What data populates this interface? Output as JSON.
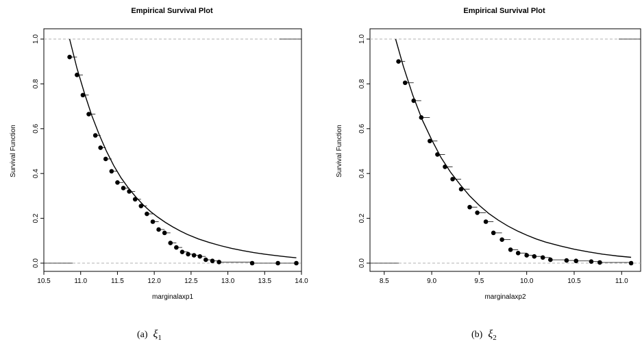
{
  "chart_data": [
    {
      "type": "scatter",
      "title": "Empirical Survival Plot",
      "xlabel": "marginalaxp1",
      "ylabel": "Survival Function",
      "xlim": [
        10.5,
        14.0
      ],
      "ylim": [
        0.0,
        1.0
      ],
      "xticks": [
        "10.5",
        "11.0",
        "11.5",
        "12.0",
        "12.5",
        "13.0",
        "13.5",
        "14.0"
      ],
      "yticks": [
        "0.0",
        "0.2",
        "0.4",
        "0.6",
        "0.8",
        "1.0"
      ],
      "caption": {
        "prefix": "(a)",
        "symbol": "ξ",
        "subscript": "1"
      },
      "points": {
        "x": [
          10.85,
          10.95,
          11.03,
          11.11,
          11.2,
          11.27,
          11.34,
          11.42,
          11.5,
          11.58,
          11.66,
          11.74,
          11.82,
          11.9,
          11.98,
          12.06,
          12.14,
          12.22,
          12.3,
          12.38,
          12.46,
          12.54,
          12.62,
          12.7,
          12.79,
          12.88,
          13.33,
          13.68,
          13.93
        ],
        "y": [
          0.92,
          0.84,
          0.75,
          0.665,
          0.57,
          0.515,
          0.465,
          0.41,
          0.36,
          0.335,
          0.32,
          0.285,
          0.255,
          0.22,
          0.185,
          0.15,
          0.135,
          0.09,
          0.07,
          0.05,
          0.04,
          0.035,
          0.03,
          0.015,
          0.01,
          0.005,
          0.0,
          0.0,
          0.0
        ]
      },
      "curve": {
        "x": [
          10.85,
          10.95,
          11.05,
          11.15,
          11.25,
          11.35,
          11.45,
          11.55,
          11.65,
          11.75,
          11.85,
          11.95,
          12.05,
          12.15,
          12.25,
          12.35,
          12.45,
          12.6,
          12.75,
          12.9,
          13.05,
          13.2,
          13.35,
          13.5,
          13.65,
          13.8,
          13.93
        ],
        "y": [
          1.0,
          0.87,
          0.76,
          0.66,
          0.575,
          0.5,
          0.435,
          0.38,
          0.335,
          0.295,
          0.26,
          0.23,
          0.205,
          0.182,
          0.162,
          0.144,
          0.128,
          0.108,
          0.092,
          0.078,
          0.066,
          0.056,
          0.047,
          0.04,
          0.034,
          0.028,
          0.024
        ]
      }
    },
    {
      "type": "scatter",
      "title": "Empirical Survival Plot",
      "xlabel": "marginalaxp2",
      "ylabel": "Survival Function",
      "xlim": [
        8.35,
        11.2
      ],
      "ylim": [
        0.0,
        1.0
      ],
      "xticks": [
        "8.5",
        "9.0",
        "9.5",
        "10.0",
        "10.5",
        "11.0"
      ],
      "yticks": [
        "0.0",
        "0.2",
        "0.4",
        "0.6",
        "0.8",
        "1.0"
      ],
      "caption": {
        "prefix": "(b)",
        "symbol": "ξ",
        "subscript": "2"
      },
      "points": {
        "x": [
          8.65,
          8.72,
          8.81,
          8.89,
          8.98,
          9.06,
          9.14,
          9.22,
          9.31,
          9.4,
          9.48,
          9.57,
          9.65,
          9.74,
          9.83,
          9.91,
          10.0,
          10.08,
          10.17,
          10.25,
          10.42,
          10.52,
          10.68,
          10.77,
          11.1
        ],
        "y": [
          0.9,
          0.805,
          0.725,
          0.65,
          0.545,
          0.485,
          0.43,
          0.375,
          0.33,
          0.25,
          0.225,
          0.185,
          0.135,
          0.105,
          0.06,
          0.045,
          0.035,
          0.03,
          0.025,
          0.015,
          0.012,
          0.01,
          0.007,
          0.003,
          0.0
        ]
      },
      "curve": {
        "x": [
          8.62,
          8.7,
          8.8,
          8.9,
          9.0,
          9.1,
          9.2,
          9.3,
          9.4,
          9.5,
          9.6,
          9.7,
          9.8,
          9.9,
          10.0,
          10.1,
          10.2,
          10.35,
          10.5,
          10.65,
          10.8,
          10.95,
          11.1
        ],
        "y": [
          1.0,
          0.88,
          0.75,
          0.64,
          0.55,
          0.47,
          0.405,
          0.35,
          0.3,
          0.258,
          0.222,
          0.192,
          0.166,
          0.144,
          0.125,
          0.108,
          0.094,
          0.077,
          0.062,
          0.05,
          0.04,
          0.032,
          0.026
        ]
      }
    }
  ]
}
